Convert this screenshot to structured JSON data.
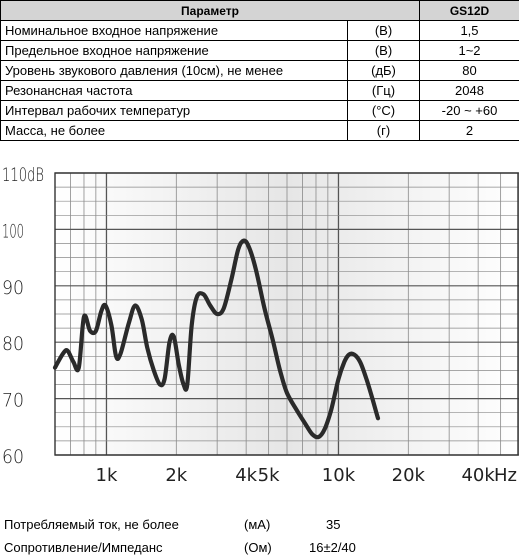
{
  "table": {
    "header": {
      "param": "Параметр",
      "model": "GS12D"
    },
    "rows": [
      {
        "name": "Номинальное входное напряжение",
        "unit": "(В)",
        "value": "1,5"
      },
      {
        "name": "Предельное входное напряжение",
        "unit": "(В)",
        "value": "1~2"
      },
      {
        "name": "Уровень звукового давления (10см), не менее",
        "unit": "(дБ)",
        "value": "80"
      },
      {
        "name": "Резонансная частота",
        "unit": "(Гц)",
        "value": "2048"
      },
      {
        "name": "Интервал рабочих температур",
        "unit": "(°С)",
        "value": "-20 ~ +60"
      },
      {
        "name": "Масса, не более",
        "unit": "(г)",
        "value": "2"
      }
    ]
  },
  "chart_data": {
    "type": "line",
    "x_scale": "log",
    "xlim": [
      600,
      60000
    ],
    "ylim": [
      60,
      110
    ],
    "grid": true,
    "y_ticks": [
      {
        "value": 110,
        "label": "110dB"
      },
      {
        "value": 100,
        "label": "100"
      },
      {
        "value": 90,
        "label": "90"
      },
      {
        "value": 80,
        "label": "80"
      },
      {
        "value": 70,
        "label": "70"
      },
      {
        "value": 60,
        "label": "60"
      }
    ],
    "x_ticks": [
      {
        "value": 1000,
        "label": "1k"
      },
      {
        "value": 2000,
        "label": "2k"
      },
      {
        "value": 4000,
        "label": "4k"
      },
      {
        "value": 5000,
        "label": "5k"
      },
      {
        "value": 10000,
        "label": "10k"
      },
      {
        "value": 20000,
        "label": "20k"
      },
      {
        "value": 40000,
        "label": "40k"
      }
    ],
    "x_unit_label": "Hz",
    "series": [
      {
        "color": "#2a2a2a",
        "points": [
          [
            600,
            75.5
          ],
          [
            650,
            78
          ],
          [
            680,
            78.5
          ],
          [
            720,
            76.5
          ],
          [
            760,
            75.5
          ],
          [
            800,
            84.5
          ],
          [
            850,
            82
          ],
          [
            900,
            82
          ],
          [
            950,
            85.5
          ],
          [
            990,
            86.5
          ],
          [
            1050,
            83
          ],
          [
            1100,
            77.5
          ],
          [
            1150,
            78
          ],
          [
            1250,
            83.5
          ],
          [
            1330,
            86.5
          ],
          [
            1420,
            84
          ],
          [
            1500,
            79
          ],
          [
            1600,
            75
          ],
          [
            1700,
            72.5
          ],
          [
            1780,
            73.5
          ],
          [
            1870,
            80
          ],
          [
            1950,
            81
          ],
          [
            2050,
            76
          ],
          [
            2150,
            72.5
          ],
          [
            2230,
            72.5
          ],
          [
            2330,
            83
          ],
          [
            2450,
            88
          ],
          [
            2620,
            88.5
          ],
          [
            2800,
            86.5
          ],
          [
            3000,
            85
          ],
          [
            3200,
            86
          ],
          [
            3450,
            91
          ],
          [
            3700,
            96.5
          ],
          [
            3900,
            98
          ],
          [
            4100,
            97
          ],
          [
            4400,
            93
          ],
          [
            4800,
            86
          ],
          [
            5200,
            80.5
          ],
          [
            5600,
            75
          ],
          [
            6000,
            71
          ],
          [
            6600,
            68
          ],
          [
            7200,
            65.5
          ],
          [
            7700,
            63.7
          ],
          [
            8200,
            63.2
          ],
          [
            8700,
            64.5
          ],
          [
            9300,
            68
          ],
          [
            10000,
            73.5
          ],
          [
            10600,
            76.5
          ],
          [
            11100,
            77.8
          ],
          [
            11700,
            77.8
          ],
          [
            12400,
            76.5
          ],
          [
            13200,
            73.5
          ],
          [
            14000,
            70
          ],
          [
            14800,
            66.5
          ]
        ]
      }
    ]
  },
  "extras": {
    "current": {
      "label": "Потребляемый ток, не более",
      "unit": "(мА)",
      "value": "35"
    },
    "impedance": {
      "label": "Сопротивление/Импеданс",
      "unit": "(Ом)",
      "value": "16±2/40"
    }
  }
}
